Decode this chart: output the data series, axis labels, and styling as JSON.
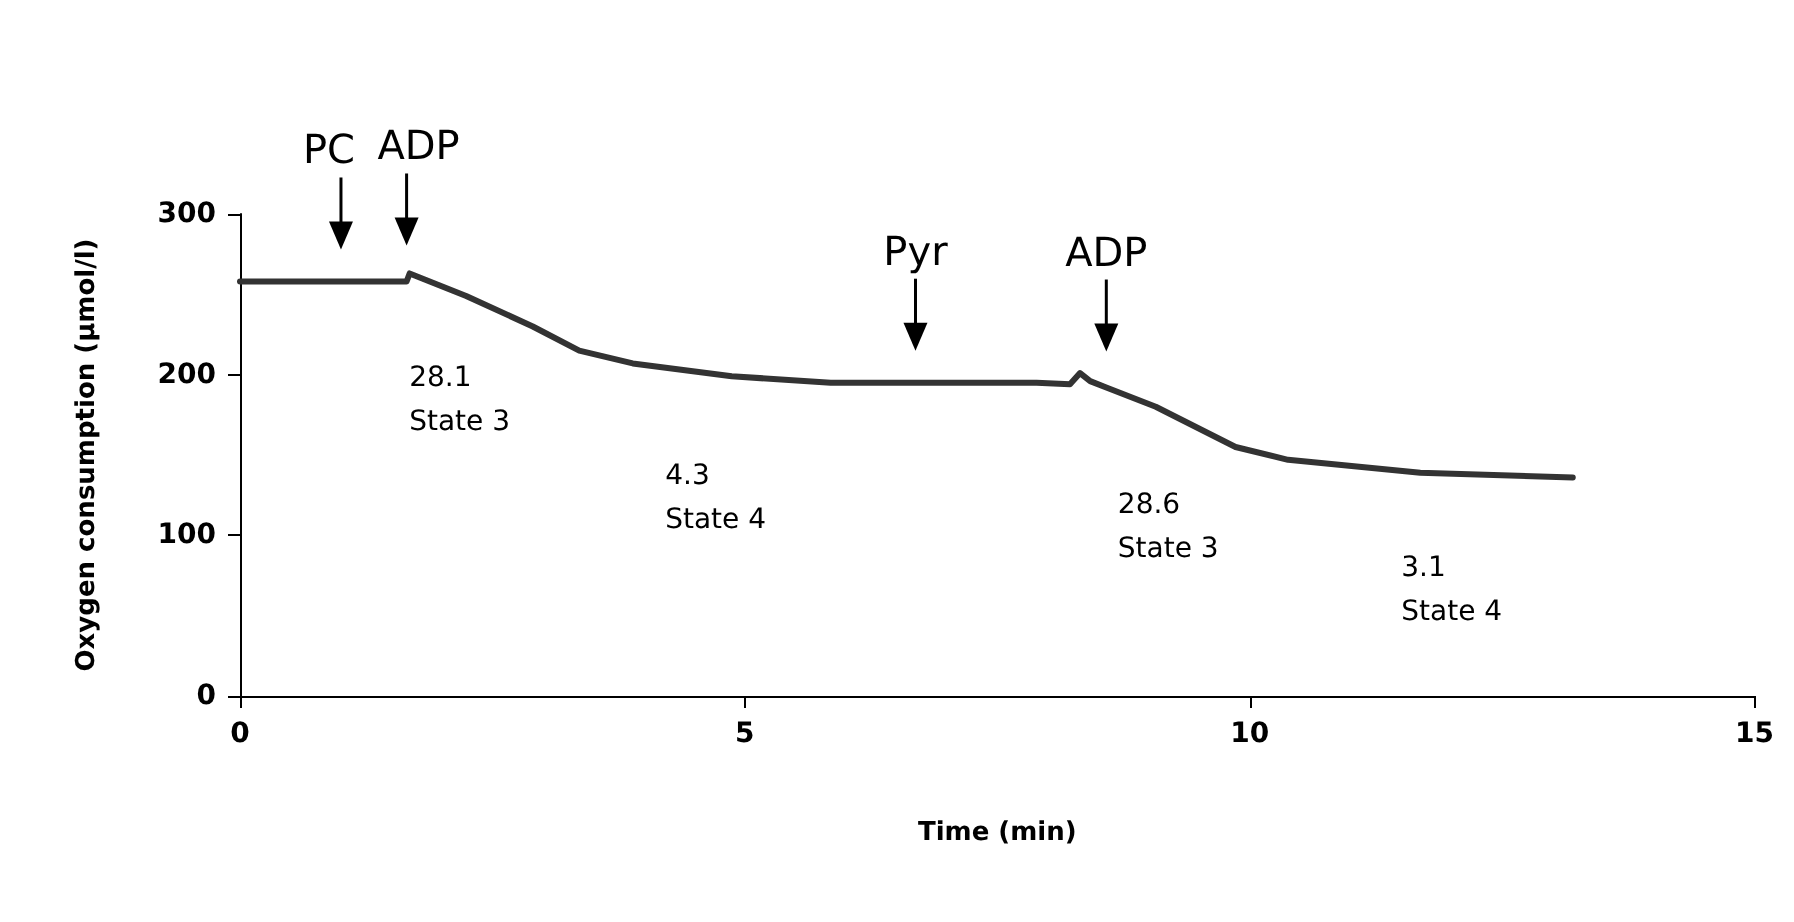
{
  "chart_data": {
    "type": "line",
    "xlabel": "Time (min)",
    "ylabel": "Oxygen consumption (µmol/l)",
    "x": [
      0,
      1.0,
      1.65,
      1.68,
      2.24,
      2.9,
      3.36,
      3.89,
      4.87,
      5.85,
      6.69,
      7.89,
      8.22,
      8.32,
      8.42,
      8.58,
      9.07,
      9.86,
      10.38,
      11.69,
      13.2
    ],
    "series": [
      {
        "color": "#333333",
        "values": [
          258,
          258,
          258,
          263,
          249,
          230,
          215,
          207,
          199,
          195,
          195,
          195,
          194,
          201,
          196,
          192,
          180,
          155,
          147,
          139,
          136
        ]
      }
    ],
    "xlim": [
      0,
      15
    ],
    "xticks": [
      0,
      5,
      10,
      15
    ],
    "ylim": [
      0,
      300
    ],
    "yticks": [
      0,
      100,
      200,
      300
    ],
    "grid": false,
    "marker": "none",
    "line_style": "solid",
    "annotations": [
      {
        "text": "PC",
        "x": 1.0,
        "y": 258
      },
      {
        "text": "ADP",
        "x": 1.65,
        "y": 258
      },
      {
        "text": "Pyr",
        "x": 6.69,
        "y": 195
      },
      {
        "text": "ADP",
        "x": 8.58,
        "y": 192
      },
      "28.1\nState 3",
      "4.3\nState 4",
      "28.6\nState 3",
      "3.1\nState 4"
    ]
  }
}
